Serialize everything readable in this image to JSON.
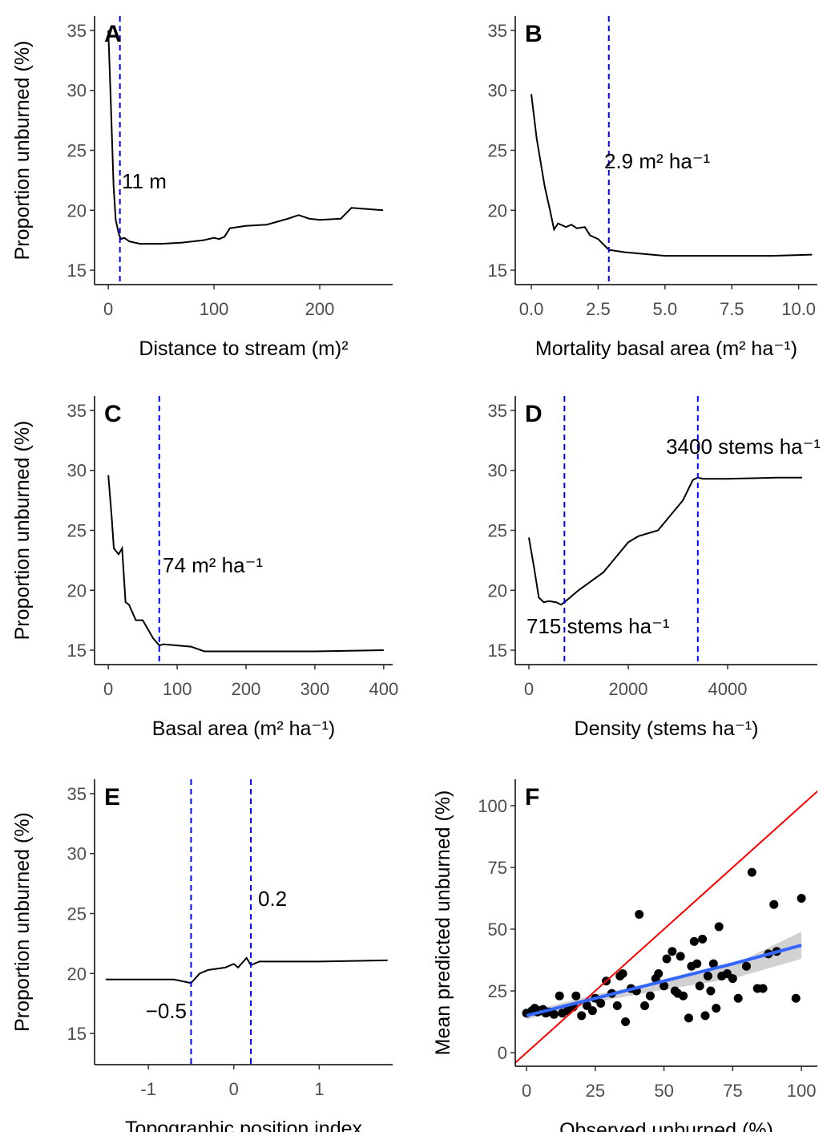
{
  "chart_data": [
    {
      "type": "line",
      "label": "A",
      "xlabel": "Distance to stream (m)²",
      "ylabel": "Proportion unburned (%)",
      "x": [
        0,
        2,
        5,
        7,
        10,
        12,
        15,
        20,
        30,
        50,
        70,
        90,
        100,
        105,
        110,
        115,
        130,
        150,
        170,
        180,
        190,
        200,
        220,
        230,
        245,
        260
      ],
      "values": [
        35,
        30,
        22,
        19.2,
        18,
        17.6,
        17.7,
        17.4,
        17.2,
        17.2,
        17.3,
        17.5,
        17.7,
        17.6,
        17.8,
        18.5,
        18.7,
        18.8,
        19.3,
        19.6,
        19.3,
        19.2,
        19.3,
        20.2,
        20.1,
        20.0
      ],
      "color": "#000000",
      "xlim": [
        -13,
        269
      ],
      "ylim": [
        13.8,
        36.2
      ],
      "xticks": [
        0,
        100,
        200
      ],
      "yticks": [
        15,
        20,
        25,
        30,
        35
      ],
      "vlines": [
        11
      ],
      "vline_color": "#0000ff",
      "annotations": [
        "11 m"
      ]
    },
    {
      "type": "line",
      "label": "B",
      "xlabel": "Mortality basal area (m² ha⁻¹)",
      "x": [
        0,
        0.2,
        0.5,
        0.7,
        0.85,
        1,
        1.3,
        1.5,
        1.7,
        2,
        2.2,
        2.5,
        2.9,
        3.5,
        4,
        5,
        7,
        9,
        10.5
      ],
      "values": [
        29.7,
        26,
        22,
        20,
        18.4,
        18.9,
        18.6,
        18.8,
        18.5,
        18.6,
        17.9,
        17.6,
        16.7,
        16.5,
        16.4,
        16.2,
        16.2,
        16.2,
        16.3
      ],
      "color": "#000000",
      "xlim": [
        -0.6,
        10.7
      ],
      "ylim": [
        13.8,
        36.2
      ],
      "xticks": [
        {
          "value": 0,
          "label": "0.0"
        },
        2.5,
        {
          "value": 5,
          "label": "5.0"
        },
        7.5,
        {
          "value": 10,
          "label": "10.0"
        }
      ],
      "yticks": [
        15,
        20,
        25,
        30,
        35
      ],
      "vlines": [
        2.9
      ],
      "vline_color": "#0000ff",
      "annotations": [
        "2.9 m² ha⁻¹"
      ]
    },
    {
      "type": "line",
      "label": "C",
      "xlabel": "Basal area (m² ha⁻¹)",
      "ylabel": "Proportion unburned (%)",
      "x": [
        0,
        5,
        8,
        15,
        20,
        25,
        30,
        40,
        50,
        55,
        65,
        74,
        80,
        100,
        120,
        140,
        200,
        300,
        400
      ],
      "values": [
        29.6,
        26,
        23.5,
        23,
        23.5,
        19,
        18.8,
        17.5,
        17.5,
        17.0,
        16,
        15.4,
        15.5,
        15.4,
        15.3,
        14.9,
        14.9,
        14.9,
        15.0
      ],
      "color": "#000000",
      "xlim": [
        -20,
        413
      ],
      "ylim": [
        13.8,
        36.2
      ],
      "xticks": [
        0,
        100,
        200,
        300,
        400
      ],
      "yticks": [
        15,
        20,
        25,
        30,
        35
      ],
      "vlines": [
        74
      ],
      "vline_color": "#0000ff",
      "annotations": [
        "74 m² ha⁻¹"
      ]
    },
    {
      "type": "line",
      "label": "D",
      "xlabel": "Density (stems ha⁻¹)",
      "x": [
        0,
        100,
        200,
        300,
        400,
        550,
        650,
        715,
        1000,
        1500,
        1800,
        2000,
        2200,
        2600,
        2800,
        3100,
        3300,
        3400,
        3500,
        4000,
        5000,
        5500
      ],
      "values": [
        24.4,
        22,
        19.4,
        19.0,
        19.1,
        19.0,
        18.8,
        19.0,
        20,
        21.5,
        23,
        24,
        24.5,
        25,
        26,
        27.5,
        29.2,
        29.4,
        29.3,
        29.3,
        29.4,
        29.4
      ],
      "color": "#000000",
      "xlim": [
        -274,
        5806
      ],
      "ylim": [
        13.8,
        36.2
      ],
      "xticks": [
        0,
        2000,
        4000
      ],
      "yticks": [
        15,
        20,
        25,
        30,
        35
      ],
      "vlines": [
        715,
        3400
      ],
      "vline_color": "#0000ff",
      "annotations": [
        "715 stems ha⁻¹",
        "3400 stems ha⁻¹"
      ]
    },
    {
      "type": "line",
      "label": "E",
      "xlabel": "Topographic position index",
      "ylabel": "Proportion unburned (%)",
      "x": [
        -1.5,
        -1.0,
        -0.7,
        -0.5,
        -0.4,
        -0.3,
        -0.1,
        0,
        0.05,
        0.15,
        0.2,
        0.3,
        0.6,
        1.0,
        1.8
      ],
      "values": [
        19.5,
        19.5,
        19.5,
        19.2,
        20.0,
        20.3,
        20.5,
        20.8,
        20.5,
        21.3,
        20.7,
        21.0,
        21.0,
        21.0,
        21.1
      ],
      "color": "#000000",
      "xlim": [
        -1.63,
        1.86
      ],
      "ylim": [
        12.4,
        36.2
      ],
      "xticks": [
        -1,
        0,
        1
      ],
      "yticks": [
        15,
        20,
        25,
        30,
        35
      ],
      "vlines": [
        -0.5,
        0.2
      ],
      "vline_color": "#0000ff",
      "annotations": [
        "−0.5",
        "0.2"
      ]
    },
    {
      "type": "scatter",
      "label": "F",
      "xlabel": "Observed unburned (%)",
      "ylabel": "Mean predicted unburned (%)",
      "x": [
        0,
        2,
        3,
        4,
        5,
        6,
        7,
        8,
        10,
        12,
        13,
        15,
        17,
        18,
        20,
        22,
        24,
        25,
        27,
        29,
        31,
        33,
        34,
        35,
        36,
        38,
        40,
        41,
        43,
        45,
        47,
        48,
        50,
        51,
        53,
        54,
        55,
        56,
        57,
        59,
        60,
        61,
        62,
        63,
        64,
        65,
        66,
        67,
        68,
        69,
        70,
        71,
        73,
        75,
        77,
        80,
        82,
        84,
        86,
        88,
        90,
        91,
        98,
        100
      ],
      "values": [
        16,
        17,
        18,
        16.5,
        17,
        17.5,
        16,
        16.5,
        15.5,
        23,
        16,
        17,
        18.5,
        23,
        15,
        19,
        17,
        22,
        20,
        29,
        24,
        19,
        31,
        32,
        12.5,
        26,
        25,
        56,
        19,
        23,
        30,
        32,
        27,
        38,
        41,
        25,
        24,
        39,
        23,
        14,
        35,
        45,
        36,
        27,
        46,
        15,
        31,
        25,
        36,
        18,
        51,
        31,
        32,
        30,
        22,
        35,
        73,
        26,
        26,
        40,
        60,
        41,
        22,
        62.5
      ],
      "color": "#000000",
      "xlim": [
        -4.1,
        105.8
      ],
      "ylim": [
        -5.5,
        110.7
      ],
      "xticks": [
        0,
        25,
        50,
        75,
        100
      ],
      "yticks": [
        0,
        25,
        50,
        75,
        100
      ],
      "identity_color": "#ff0000",
      "fit": {
        "x": [
          0,
          25,
          50,
          75,
          100
        ],
        "values": [
          15,
          22,
          29,
          36,
          43.5
        ],
        "lower": [
          13.5,
          20.5,
          25.5,
          30,
          38
        ],
        "upper": [
          16.5,
          23.5,
          29,
          35.5,
          49
        ],
        "color": "#3366ff",
        "band_color": "#bdbdbd"
      }
    }
  ]
}
